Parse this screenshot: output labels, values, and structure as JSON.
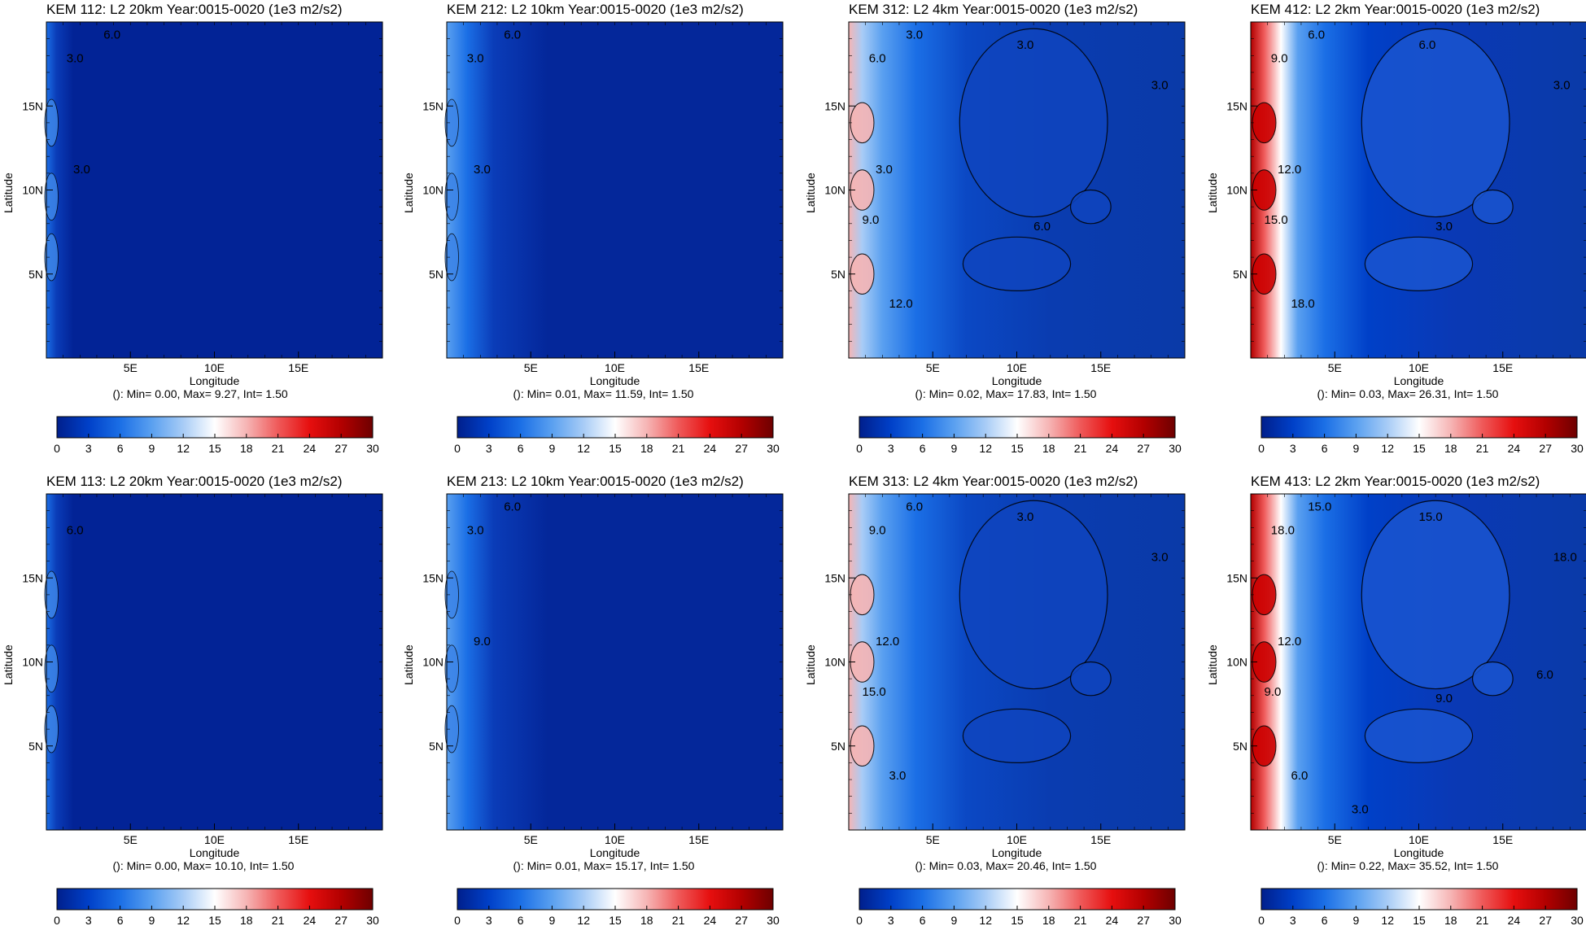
{
  "colorbar": {
    "ticks": [
      0,
      3,
      6,
      9,
      12,
      15,
      18,
      21,
      24,
      27,
      30
    ],
    "colors": [
      "#001f8c",
      "#0040c8",
      "#1b6fe6",
      "#5aa0f0",
      "#a8ccf6",
      "#ffffff",
      "#f6b5b5",
      "#ef5a5a",
      "#e60f0f",
      "#b30000",
      "#6e0000"
    ]
  },
  "axis": {
    "xlabel": "Longitude",
    "ylabel": "Latitude",
    "xticks": [
      "5E",
      "10E",
      "15E"
    ],
    "yticks": [
      "5N",
      "10N",
      "15N"
    ]
  },
  "chart_data": [
    {
      "type": "heatmap",
      "title": "KEM 112: L2 20km Year:0015-0020 (1e3 m2/s2)",
      "stats": "(): Min= 0.00, Max= 9.27, Int= 1.50",
      "xlabel": "Longitude",
      "ylabel": "Latitude",
      "xlim": [
        0,
        20
      ],
      "ylim": [
        0,
        20
      ],
      "zlim": [
        0,
        30
      ],
      "contour_labels": [
        "3.0",
        "6.0",
        "3.0"
      ]
    },
    {
      "type": "heatmap",
      "title": "KEM 212: L2 10km Year:0015-0020 (1e3 m2/s2)",
      "stats": "(): Min= 0.01, Max= 11.59, Int= 1.50",
      "xlabel": "Longitude",
      "ylabel": "Latitude",
      "xlim": [
        0,
        20
      ],
      "ylim": [
        0,
        20
      ],
      "zlim": [
        0,
        30
      ],
      "contour_labels": [
        "3.0",
        "6.0",
        "3.0"
      ]
    },
    {
      "type": "heatmap",
      "title": "KEM 312: L2 4km Year:0015-0020 (1e3 m2/s2)",
      "stats": "(): Min= 0.02, Max= 17.83, Int= 1.50",
      "xlabel": "Longitude",
      "ylabel": "Latitude",
      "xlim": [
        0,
        20
      ],
      "ylim": [
        0,
        20
      ],
      "zlim": [
        0,
        30
      ],
      "contour_labels": [
        "6.0",
        "3.0",
        "3.0",
        "9.0",
        "12.0",
        "3.0",
        "3.0",
        "6.0"
      ]
    },
    {
      "type": "heatmap",
      "title": "KEM 412: L2 2km Year:0015-0020 (1e3 m2/s2)",
      "stats": "(): Min= 0.03, Max= 26.31, Int= 1.50",
      "xlabel": "Longitude",
      "ylabel": "Latitude",
      "xlim": [
        0,
        20
      ],
      "ylim": [
        0,
        20
      ],
      "zlim": [
        0,
        30
      ],
      "contour_labels": [
        "9.0",
        "6.0",
        "12.0",
        "15.0",
        "18.0",
        "6.0",
        "3.0",
        "3.0"
      ]
    },
    {
      "type": "heatmap",
      "title": "KEM 113: L2 20km Year:0015-0020 (1e3 m2/s2)",
      "stats": "(): Min= 0.00, Max= 10.10, Int= 1.50",
      "xlabel": "Longitude",
      "ylabel": "Latitude",
      "xlim": [
        0,
        20
      ],
      "ylim": [
        0,
        20
      ],
      "zlim": [
        0,
        30
      ],
      "contour_labels": [
        "6.0"
      ]
    },
    {
      "type": "heatmap",
      "title": "KEM 213: L2 10km Year:0015-0020 (1e3 m2/s2)",
      "stats": "(): Min= 0.01, Max= 15.17, Int= 1.50",
      "xlabel": "Longitude",
      "ylabel": "Latitude",
      "xlim": [
        0,
        20
      ],
      "ylim": [
        0,
        20
      ],
      "zlim": [
        0,
        30
      ],
      "contour_labels": [
        "3.0",
        "6.0",
        "9.0"
      ]
    },
    {
      "type": "heatmap",
      "title": "KEM 313: L2 4km Year:0015-0020 (1e3 m2/s2)",
      "stats": "(): Min= 0.03, Max= 20.46, Int= 1.50",
      "xlabel": "Longitude",
      "ylabel": "Latitude",
      "xlim": [
        0,
        20
      ],
      "ylim": [
        0,
        20
      ],
      "zlim": [
        0,
        30
      ],
      "contour_labels": [
        "9.0",
        "6.0",
        "12.0",
        "15.0",
        "3.0",
        "3.0",
        "3.0"
      ]
    },
    {
      "type": "heatmap",
      "title": "KEM 413: L2 2km Year:0015-0020 (1e3 m2/s2)",
      "stats": "(): Min= 0.22, Max= 35.52, Int= 1.50",
      "xlabel": "Longitude",
      "ylabel": "Latitude",
      "xlim": [
        0,
        20
      ],
      "ylim": [
        0,
        20
      ],
      "zlim": [
        0,
        30
      ],
      "contour_labels": [
        "18.0",
        "15.0",
        "12.0",
        "9.0",
        "6.0",
        "15.0",
        "18.0",
        "9.0",
        "6.0",
        "3.0"
      ]
    }
  ]
}
